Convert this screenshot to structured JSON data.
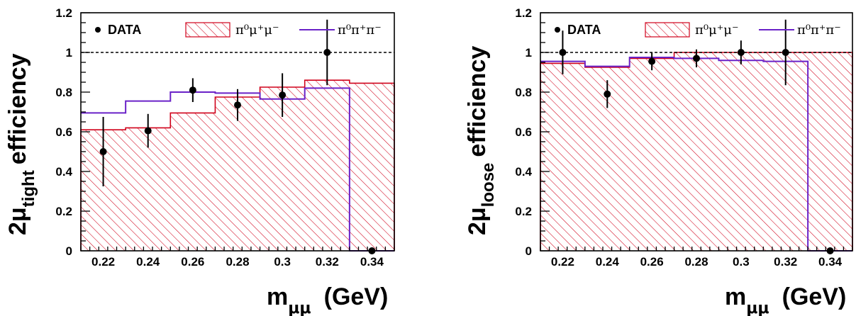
{
  "chart_data": [
    {
      "type": "histogram",
      "panel": "left",
      "xlim": [
        0.21,
        0.35
      ],
      "ylim": [
        0,
        1.2
      ],
      "x_ticks": [
        "0.22",
        "0.24",
        "0.26",
        "0.28",
        "0.3",
        "0.32",
        "0.34"
      ],
      "y_ticks": [
        "0",
        "0.2",
        "0.4",
        "0.6",
        "0.8",
        "1",
        "1.2"
      ],
      "xlabel": {
        "main": "m",
        "sub": "μμ",
        "unit": "(GeV)"
      },
      "ylabel": {
        "prefix": "2μ",
        "sub": "tight",
        "suffix": "efficiency"
      },
      "reference_line": 1.0,
      "bin_edges": [
        0.21,
        0.23,
        0.25,
        0.27,
        0.29,
        0.31,
        0.33,
        0.35
      ],
      "series": [
        {
          "name": "DATA",
          "kind": "points",
          "x": [
            0.22,
            0.24,
            0.26,
            0.28,
            0.3,
            0.32,
            0.34
          ],
          "y": [
            0.5,
            0.605,
            0.81,
            0.735,
            0.785,
            1.0,
            0.0
          ],
          "yerr": [
            0.175,
            0.085,
            0.06,
            0.08,
            0.11,
            0.165,
            0.0
          ]
        },
        {
          "name": "π⁰μ⁺μ⁻",
          "kind": "hatched-histogram",
          "color": "#d0021b",
          "values": [
            0.61,
            0.62,
            0.695,
            0.775,
            0.825,
            0.86,
            0.845
          ]
        },
        {
          "name": "π⁰π⁺π⁻",
          "kind": "line-histogram",
          "color": "#6a22c8",
          "values": [
            0.695,
            0.755,
            0.8,
            0.795,
            0.765,
            0.82,
            0.0
          ]
        }
      ]
    },
    {
      "type": "histogram",
      "panel": "right",
      "xlim": [
        0.21,
        0.35
      ],
      "ylim": [
        0,
        1.2
      ],
      "x_ticks": [
        "0.22",
        "0.24",
        "0.26",
        "0.28",
        "0.3",
        "0.32",
        "0.34"
      ],
      "y_ticks": [
        "0",
        "0.2",
        "0.4",
        "0.6",
        "0.8",
        "1",
        "1.2"
      ],
      "xlabel": {
        "main": "m",
        "sub": "μμ",
        "unit": "(GeV)"
      },
      "ylabel": {
        "prefix": "2μ",
        "sub": "loose",
        "suffix": "efficiency"
      },
      "reference_line": 1.0,
      "bin_edges": [
        0.21,
        0.23,
        0.25,
        0.27,
        0.29,
        0.31,
        0.33,
        0.35
      ],
      "series": [
        {
          "name": "DATA",
          "kind": "points",
          "x": [
            0.22,
            0.24,
            0.26,
            0.28,
            0.3,
            0.32,
            0.34
          ],
          "y": [
            1.0,
            0.79,
            0.955,
            0.97,
            1.0,
            1.0,
            0.0
          ],
          "yerr": [
            0.11,
            0.07,
            0.045,
            0.045,
            0.06,
            0.165,
            0.0
          ]
        },
        {
          "name": "π⁰μ⁺μ⁻",
          "kind": "hatched-histogram",
          "color": "#d0021b",
          "values": [
            0.945,
            0.925,
            0.97,
            1.0,
            1.0,
            1.0,
            1.0
          ]
        },
        {
          "name": "π⁰π⁺π⁻",
          "kind": "line-histogram",
          "color": "#6a22c8",
          "values": [
            0.955,
            0.93,
            0.975,
            0.97,
            0.96,
            0.955,
            0.0
          ]
        }
      ]
    }
  ],
  "legend": {
    "data_label": "DATA",
    "signal_label": "π⁰μ⁺μ⁻",
    "background_label": "π⁰π⁺π⁻"
  }
}
